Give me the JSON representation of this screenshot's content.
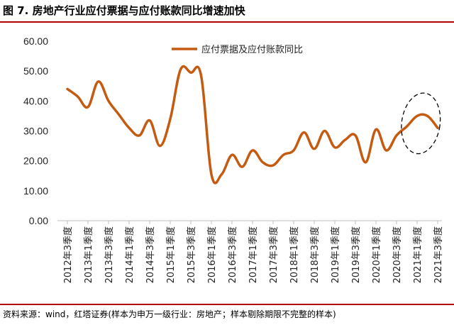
{
  "figure": {
    "title": "图 7. 房地产行业应付票据与应付账款同比增速加快",
    "source": "资料来源：wind，红塔证券(样本为申万一级行业：房地产；样本剔除期限不完整的样本)"
  },
  "chart_data": {
    "type": "line",
    "title": "",
    "xlabel": "",
    "ylabel": "",
    "ylim": [
      0,
      60
    ],
    "yticks": [
      "0.00",
      "10.00",
      "20.00",
      "30.00",
      "40.00",
      "50.00",
      "60.00"
    ],
    "grid": false,
    "legend_position": "top",
    "categories": [
      "2012年3季度",
      "2012年4季度",
      "2013年1季度",
      "2013年2季度",
      "2013年3季度",
      "2013年4季度",
      "2014年1季度",
      "2014年2季度",
      "2014年3季度",
      "2014年4季度",
      "2015年1季度",
      "2015年2季度",
      "2015年3季度",
      "2015年4季度",
      "2016年1季度",
      "2016年2季度",
      "2016年3季度",
      "2016年4季度",
      "2017年1季度",
      "2017年2季度",
      "2017年3季度",
      "2017年4季度",
      "2018年1季度",
      "2018年2季度",
      "2018年3季度",
      "2018年4季度",
      "2019年1季度",
      "2019年2季度",
      "2019年3季度",
      "2019年4季度",
      "2020年1季度",
      "2020年2季度",
      "2020年3季度",
      "2020年4季度",
      "2021年1季度",
      "2021年2季度",
      "2021年3季度"
    ],
    "xtick_labels": [
      "2012年3季度",
      "2013年1季度",
      "2013年3季度",
      "2014年1季度",
      "2014年3季度",
      "2015年1季度",
      "2015年3季度",
      "2016年1季度",
      "2016年3季度",
      "2017年1季度",
      "2017年3季度",
      "2018年1季度",
      "2018年3季度",
      "2019年1季度",
      "2019年3季度",
      "2020年1季度",
      "2020年3季度",
      "2021年1季度",
      "2021年3季度"
    ],
    "series": [
      {
        "name": "应付票据及应付账款同比",
        "color": "#c55a11",
        "values": [
          44.0,
          41.5,
          38.0,
          46.5,
          40.0,
          35.5,
          31.0,
          28.5,
          33.5,
          25.0,
          34.0,
          50.5,
          49.5,
          48.5,
          15.5,
          15.5,
          22.0,
          18.0,
          23.5,
          19.5,
          18.5,
          22.0,
          23.5,
          29.5,
          24.0,
          30.0,
          24.5,
          27.0,
          28.5,
          19.5,
          30.5,
          23.5,
          28.5,
          31.5,
          35.0,
          35.0,
          31.0
        ]
      }
    ],
    "annotations": [
      {
        "type": "dashed-ellipse",
        "around": [
          "2020年4季度",
          "2021年3季度"
        ]
      }
    ]
  }
}
